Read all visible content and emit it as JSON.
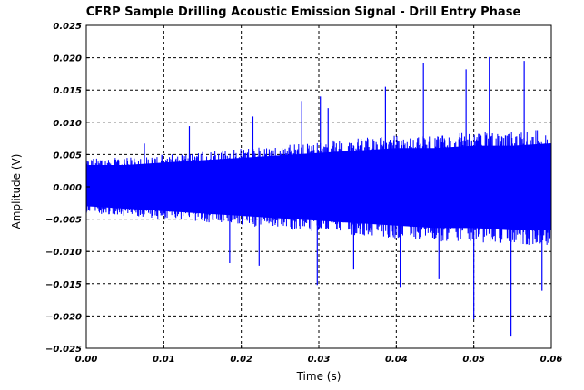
{
  "chart_data": {
    "type": "line",
    "title": "CFRP Sample Drilling Acoustic Emission Signal - Drill Entry Phase",
    "xlabel": "Time (s)",
    "ylabel": "Amplitude (V)",
    "xlim": [
      0.0,
      0.06
    ],
    "ylim": [
      -0.025,
      0.025
    ],
    "x_ticks": [
      "0.00",
      "0.01",
      "0.02",
      "0.03",
      "0.04",
      "0.05",
      "0.06"
    ],
    "y_ticks": [
      "0.025",
      "0.020",
      "0.015",
      "0.010",
      "0.005",
      "0.000",
      "−0.005",
      "−0.010",
      "−0.015",
      "−0.020",
      "−0.025"
    ],
    "grid": true,
    "grid_style": "dashed",
    "series": [
      {
        "color": "#0000ff",
        "envelope": {
          "x": [
            0.0,
            0.005,
            0.01,
            0.015,
            0.02,
            0.025,
            0.03,
            0.035,
            0.04,
            0.045,
            0.05,
            0.055,
            0.06
          ],
          "upper": [
            0.0045,
            0.0045,
            0.005,
            0.0055,
            0.006,
            0.0065,
            0.007,
            0.0075,
            0.008,
            0.008,
            0.0085,
            0.0085,
            0.009
          ],
          "lower": [
            -0.004,
            -0.0045,
            -0.005,
            -0.0055,
            -0.006,
            -0.0065,
            -0.007,
            -0.0075,
            -0.008,
            -0.0085,
            -0.0085,
            -0.009,
            -0.009
          ]
        },
        "peaks": [
          {
            "x": 0.0075,
            "y": 0.0067
          },
          {
            "x": 0.0133,
            "y": 0.0094
          },
          {
            "x": 0.0185,
            "y": -0.0118
          },
          {
            "x": 0.0215,
            "y": 0.0109
          },
          {
            "x": 0.0223,
            "y": -0.0122
          },
          {
            "x": 0.0278,
            "y": 0.0133
          },
          {
            "x": 0.0298,
            "y": -0.0152
          },
          {
            "x": 0.0302,
            "y": 0.014
          },
          {
            "x": 0.0312,
            "y": 0.0122
          },
          {
            "x": 0.0345,
            "y": -0.0128
          },
          {
            "x": 0.0386,
            "y": 0.0155
          },
          {
            "x": 0.0405,
            "y": -0.0155
          },
          {
            "x": 0.0435,
            "y": 0.0192
          },
          {
            "x": 0.0455,
            "y": -0.0143
          },
          {
            "x": 0.049,
            "y": 0.0182
          },
          {
            "x": 0.05,
            "y": -0.0205
          },
          {
            "x": 0.052,
            "y": 0.0201
          },
          {
            "x": 0.0548,
            "y": -0.0232
          },
          {
            "x": 0.0565,
            "y": 0.0195
          },
          {
            "x": 0.0588,
            "y": -0.0161
          }
        ]
      }
    ]
  }
}
